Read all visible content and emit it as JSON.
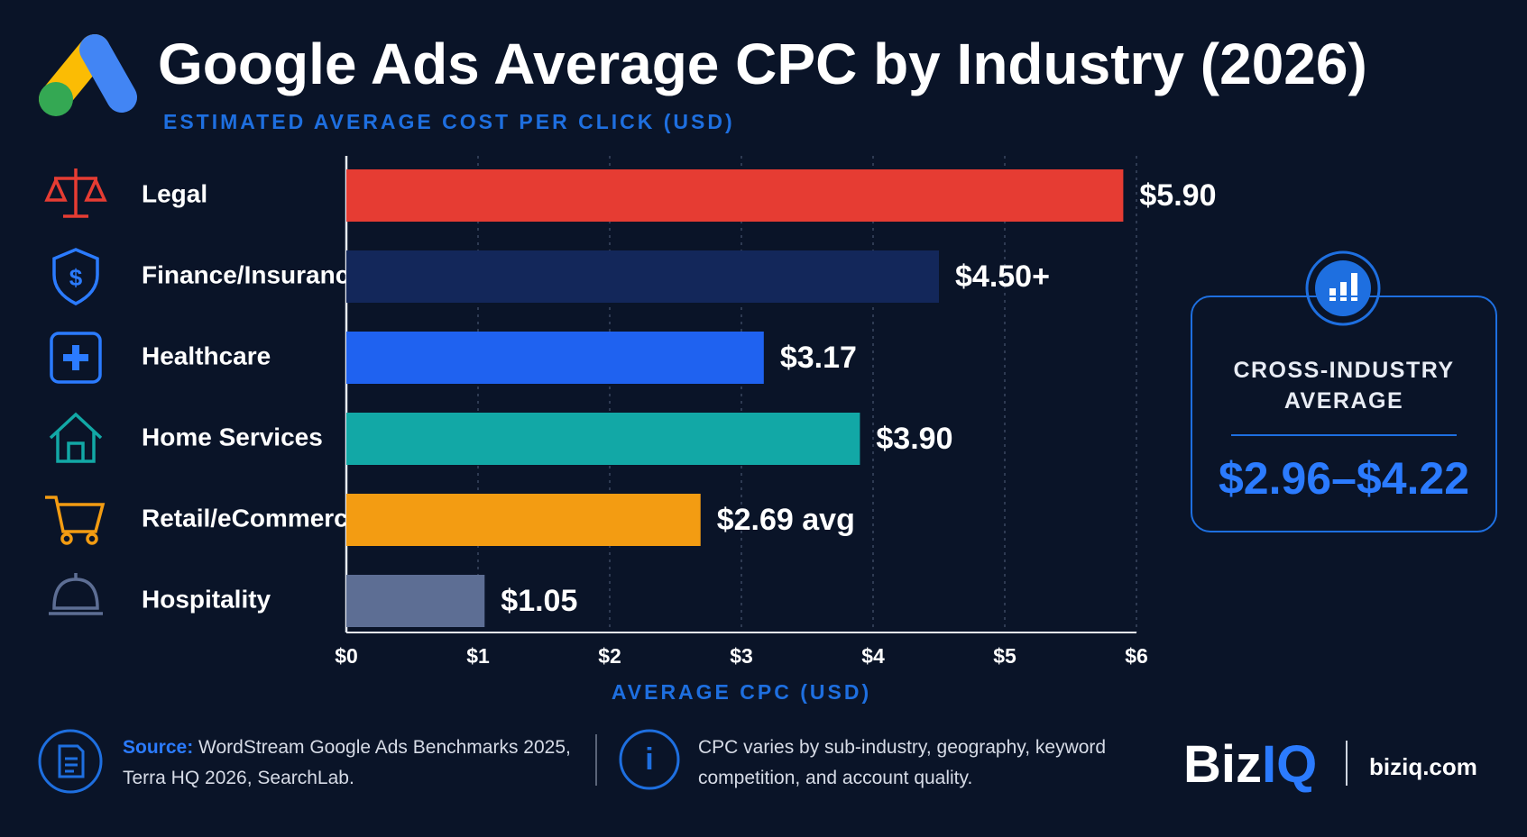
{
  "chart_data": {
    "type": "bar",
    "orientation": "horizontal",
    "title": "Google Ads Average CPC by Industry (2026)",
    "subtitle": "ESTIMATED AVERAGE COST PER CLICK (USD)",
    "categories": [
      "Legal",
      "Finance/Insurance",
      "Healthcare",
      "Home Services",
      "Retail/eCommerce",
      "Hospitality"
    ],
    "values": [
      5.9,
      4.5,
      3.17,
      3.9,
      2.69,
      1.05
    ],
    "value_labels": [
      "$5.90",
      "$4.50+",
      "$3.17",
      "$3.90",
      "$2.69 avg",
      "$1.05"
    ],
    "colors": [
      "#e63c33",
      "#13275a",
      "#1f62f0",
      "#12a8a6",
      "#f39c12",
      "#5d6e94"
    ],
    "xlim": [
      0,
      6
    ],
    "xticks": [
      {
        "value": 0,
        "label": "$0"
      },
      {
        "value": 1,
        "label": "$1"
      },
      {
        "value": 2,
        "label": "$2"
      },
      {
        "value": 3,
        "label": "$3"
      },
      {
        "value": 4,
        "label": "$4"
      },
      {
        "value": 5,
        "label": "$5"
      },
      {
        "value": 6,
        "label": "$6"
      }
    ],
    "xlabel": "AVERAGE CPC (USD)",
    "grid": true
  },
  "callout": {
    "title": "CROSS-INDUSTRY AVERAGE",
    "value": "$2.96–$4.22"
  },
  "footer": {
    "source_label": "Source:",
    "source_text": "WordStream Google Ads Benchmarks 2025, Terra HQ 2026, SearchLab.",
    "note": "CPC varies by sub-industry, geography, keyword competition, and account quality."
  },
  "brand": {
    "name_a": "Biz",
    "name_b": "IQ",
    "site": "biziq.com"
  }
}
